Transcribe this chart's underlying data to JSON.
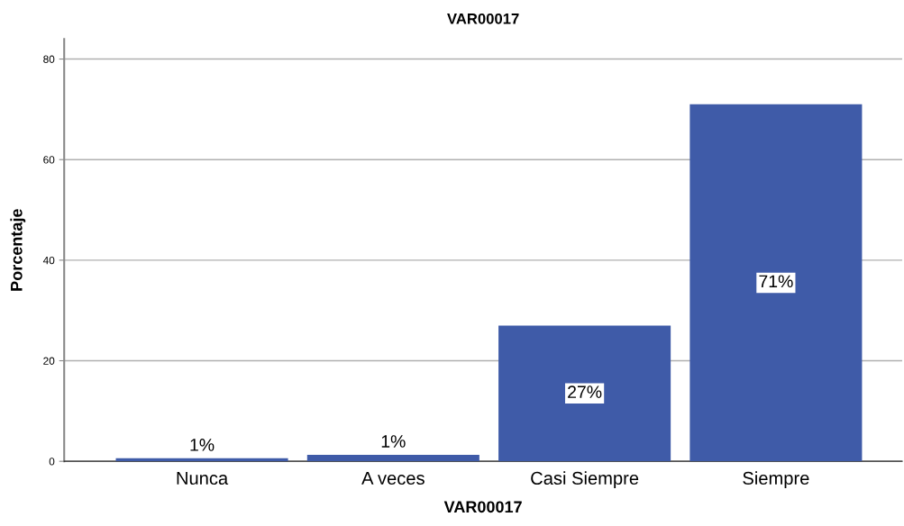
{
  "chart_data": {
    "type": "bar",
    "title": "VAR00017",
    "xlabel": "VAR00017",
    "ylabel": "Porcentaje",
    "categories": [
      "Nunca",
      "A veces",
      "Casi Siempre",
      "Siempre"
    ],
    "values": [
      0.6,
      1.3,
      27,
      71
    ],
    "color": "#3f5ba8",
    "value_labels": [
      "1%",
      "1%",
      "27%",
      "71%"
    ],
    "ylim": [
      0,
      84
    ],
    "yticks": [
      0,
      20,
      40,
      60,
      80
    ],
    "grid": "y"
  }
}
